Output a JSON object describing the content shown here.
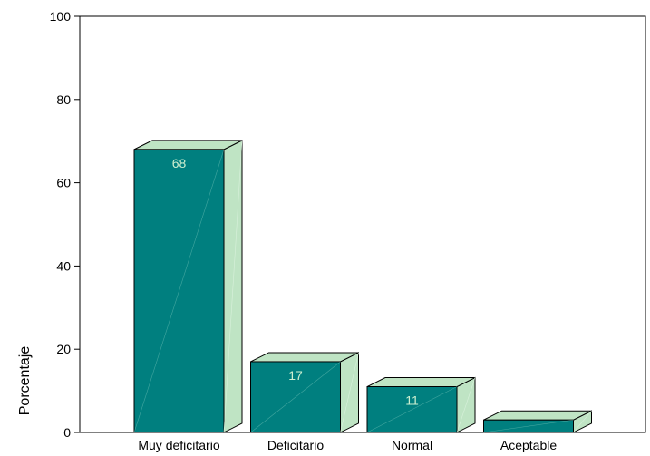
{
  "chart_data": {
    "type": "bar",
    "categories": [
      "Muy deficitario",
      "Deficitario",
      "Normal",
      "Aceptable"
    ],
    "values": [
      68,
      17,
      11,
      3
    ],
    "data_labels": [
      "68",
      "17",
      "11",
      ""
    ],
    "title": "",
    "xlabel": "",
    "ylabel": "Porcentaje",
    "ylim": [
      0,
      100
    ],
    "yticks": [
      0,
      20,
      40,
      60,
      80,
      100
    ],
    "grid": false,
    "legend": "none",
    "style": "3d-bar",
    "colors": {
      "bar_front": "#007F7F",
      "bar_side": "#BFE4C4",
      "bar_top": "#BFE4C4",
      "data_label": "#CDEFD0",
      "axis": "#000000"
    }
  }
}
